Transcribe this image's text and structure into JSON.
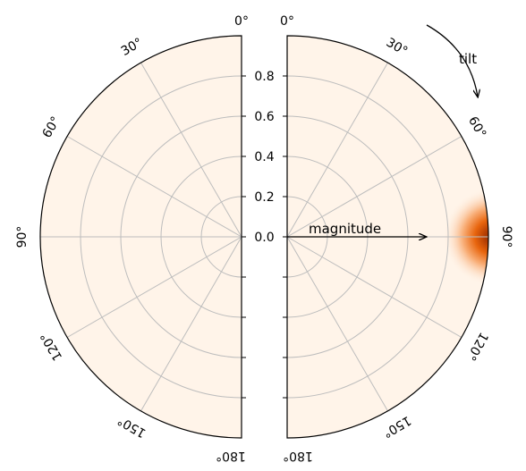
{
  "chart_data": {
    "type": "heatmap",
    "panels": [
      {
        "name": "",
        "side": "left",
        "theta_range_deg": [
          0,
          180
        ],
        "r_range": [
          0,
          1
        ]
      },
      {
        "name": "",
        "side": "right",
        "theta_range_deg": [
          0,
          180
        ],
        "r_range": [
          0,
          1
        ]
      }
    ],
    "angle_ticks_deg": [
      0,
      30,
      60,
      90,
      120,
      150,
      180
    ],
    "angle_tick_labels": [
      "0°",
      "30°",
      "60°",
      "90°",
      "120°",
      "150°",
      "180°"
    ],
    "radial_ticks": [
      0.0,
      0.2,
      0.4,
      0.6,
      0.8
    ],
    "radial_tick_labels": [
      "0.0",
      "0.2",
      "0.4",
      "0.6",
      "0.8"
    ],
    "colormap": "Oranges",
    "hotspot": {
      "panel": "right",
      "theta_deg": 90,
      "r": 1.0,
      "intensity": "high"
    },
    "grid": true,
    "annotations": {
      "tilt_label": "tilt",
      "magnitude_label": "magnitude"
    }
  }
}
